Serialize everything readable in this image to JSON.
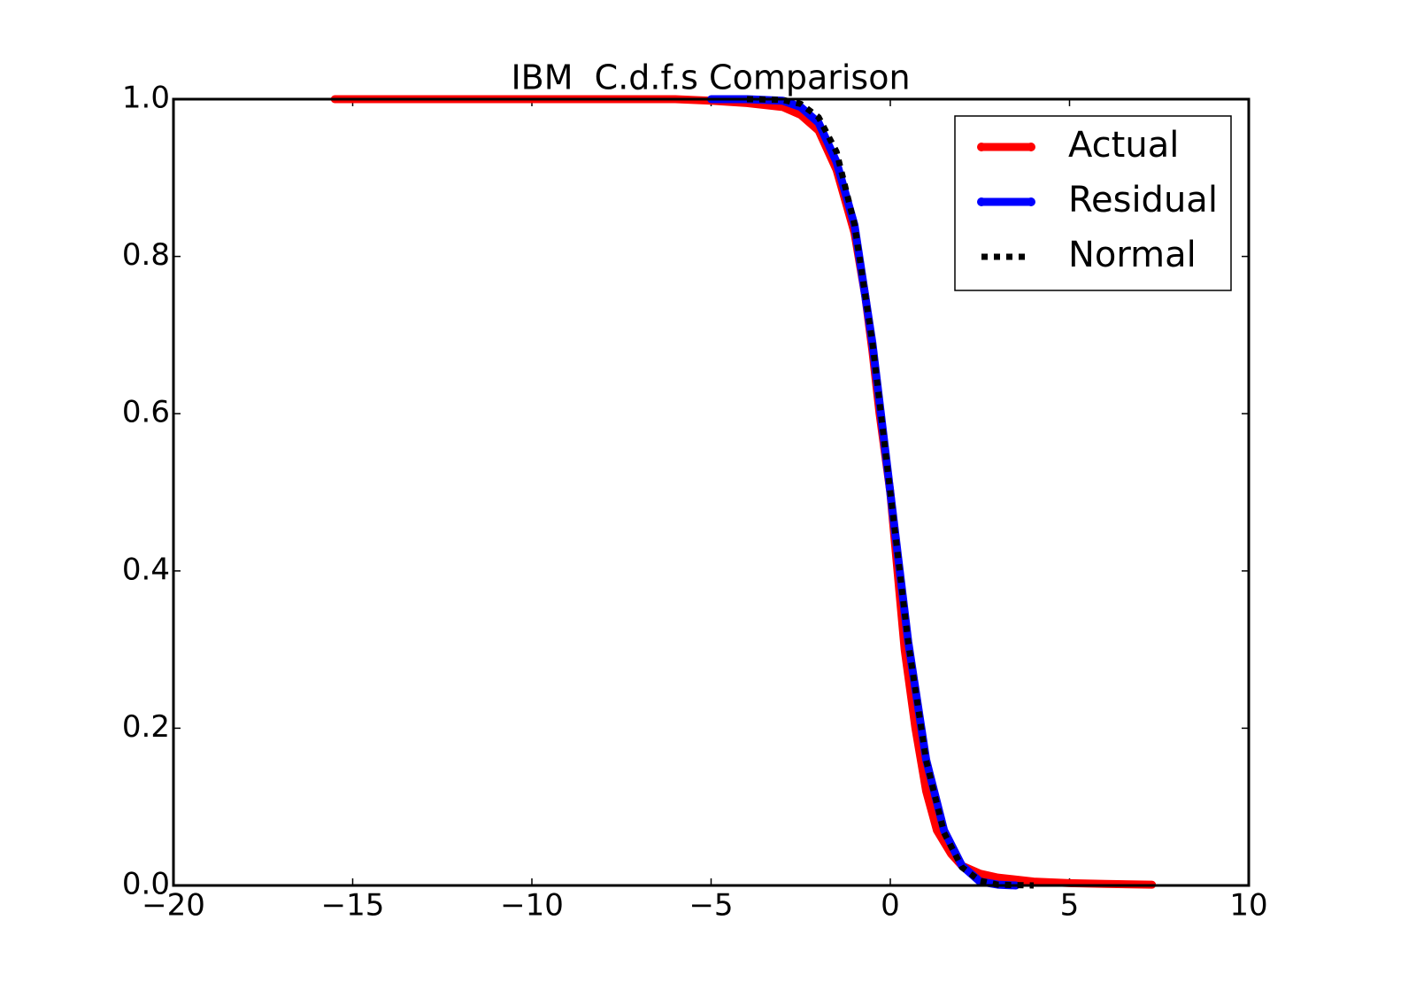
{
  "chart_data": {
    "type": "line",
    "title": "IBM  C.d.f.s Comparison",
    "xlim": [
      -20,
      10
    ],
    "xticks": [
      {
        "value": -20,
        "label": "−20"
      },
      {
        "value": -15,
        "label": "−15"
      },
      {
        "value": -10,
        "label": "−10"
      },
      {
        "value": -5,
        "label": "−5"
      },
      0,
      5,
      10
    ],
    "ylim": [
      0,
      1
    ],
    "yticks": [
      {
        "value": 0,
        "label": "0.0"
      },
      0.2,
      0.4,
      0.6,
      0.8,
      {
        "value": 1,
        "label": "1.0"
      }
    ],
    "grid": false,
    "legend": "upper right",
    "series": [
      {
        "name": "Actual",
        "color": "#ff0000",
        "style": "solid",
        "x": [
          -15.5,
          -10,
          -9.5,
          -6.8,
          -6,
          -5,
          -4,
          -3,
          -2.5,
          -2,
          -1.5,
          -1,
          -0.7,
          -0.5,
          -0.3,
          0,
          0.2,
          0.4,
          0.7,
          1,
          1.3,
          1.7,
          2,
          2.5,
          3,
          4,
          5,
          6,
          7.3
        ],
        "values": [
          1,
          1,
          1,
          1,
          1,
          0.998,
          0.995,
          0.99,
          0.98,
          0.96,
          0.91,
          0.83,
          0.75,
          0.68,
          0.6,
          0.5,
          0.4,
          0.3,
          0.2,
          0.12,
          0.07,
          0.04,
          0.025,
          0.015,
          0.01,
          0.005,
          0.003,
          0.002,
          0.001
        ]
      },
      {
        "name": "Residual",
        "color": "#0000ff",
        "style": "solid",
        "x": [
          -5,
          -4,
          -3,
          -2.5,
          -2,
          -1.5,
          -1,
          -0.5,
          0,
          0.5,
          1,
          1.5,
          2,
          2.5,
          3,
          3.5
        ],
        "values": [
          1,
          1,
          0.998,
          0.99,
          0.97,
          0.92,
          0.84,
          0.69,
          0.5,
          0.31,
          0.16,
          0.07,
          0.025,
          0.005,
          0.001,
          0
        ]
      },
      {
        "name": "Normal",
        "color": "#000000",
        "style": "dotted",
        "x": [
          -4,
          -3,
          -2.5,
          -2,
          -1.5,
          -1,
          -0.5,
          0,
          0.5,
          1,
          1.5,
          2,
          2.5,
          3,
          4
        ],
        "values": [
          1,
          0.999,
          0.994,
          0.977,
          0.933,
          0.841,
          0.691,
          0.5,
          0.309,
          0.159,
          0.067,
          0.023,
          0.006,
          0.001,
          0
        ]
      }
    ]
  }
}
